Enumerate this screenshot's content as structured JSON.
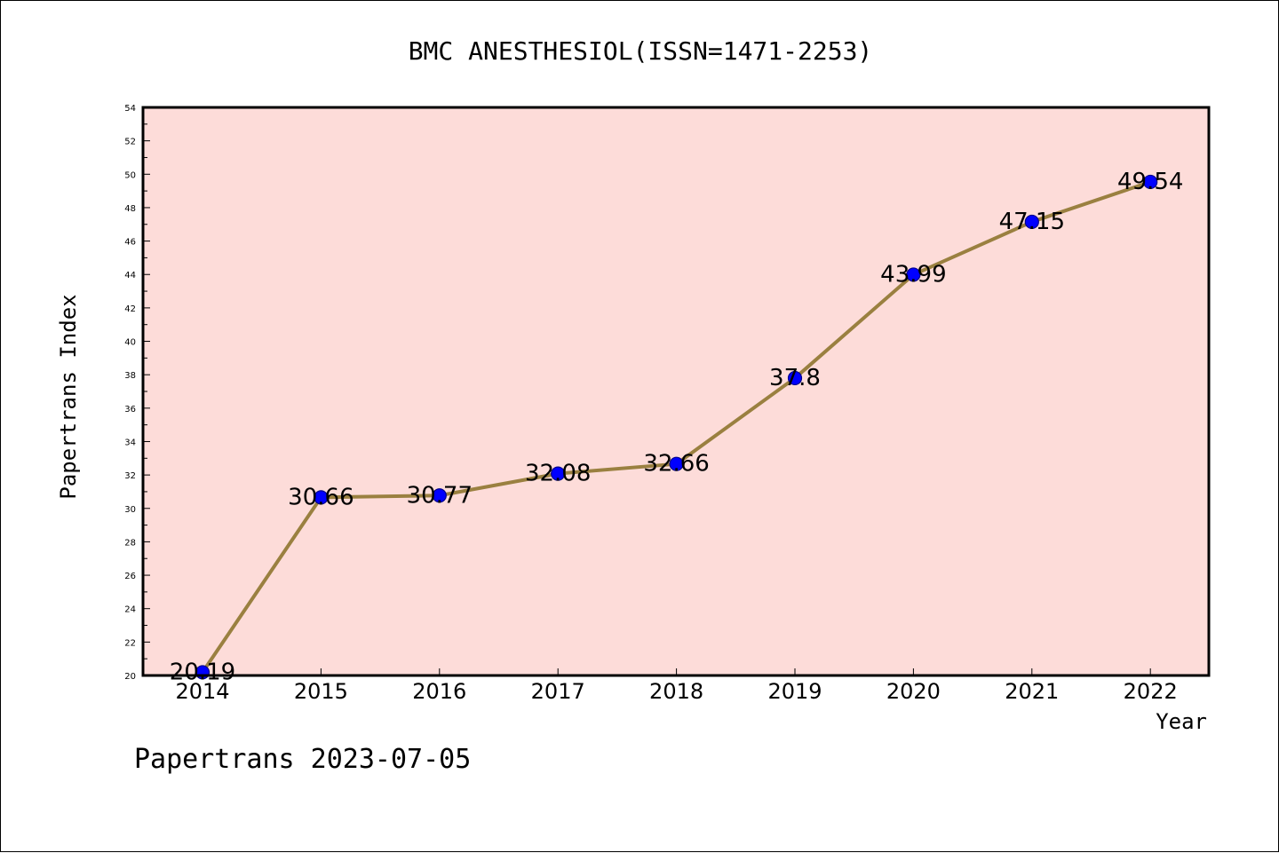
{
  "chart_data": {
    "type": "line",
    "title": "BMC ANESTHESIOL(ISSN=1471-2253)",
    "xlabel": "Year",
    "ylabel": "Papertrans Index",
    "categories": [
      "2014",
      "2015",
      "2016",
      "2017",
      "2018",
      "2019",
      "2020",
      "2021",
      "2022"
    ],
    "values": [
      20.19,
      30.66,
      30.77,
      32.08,
      32.66,
      37.8,
      43.99,
      47.15,
      49.54
    ],
    "data_labels": [
      "20.19",
      "30.66",
      "30.77",
      "32.08",
      "32.66",
      "37.8",
      "43.99",
      "47.15",
      "49.54"
    ],
    "ylim": [
      20,
      54
    ],
    "yticks": [
      "20",
      "22",
      "24",
      "26",
      "28",
      "30",
      "32",
      "34",
      "36",
      "38",
      "40",
      "42",
      "44",
      "46",
      "48",
      "50",
      "52",
      "54"
    ],
    "grid": false,
    "colors": {
      "plot_background": "#fddcd9",
      "line": "#9a8040",
      "marker_fill": "#0000ff",
      "marker_edge": "#00008b"
    }
  },
  "footer": "Papertrans 2023-07-05"
}
